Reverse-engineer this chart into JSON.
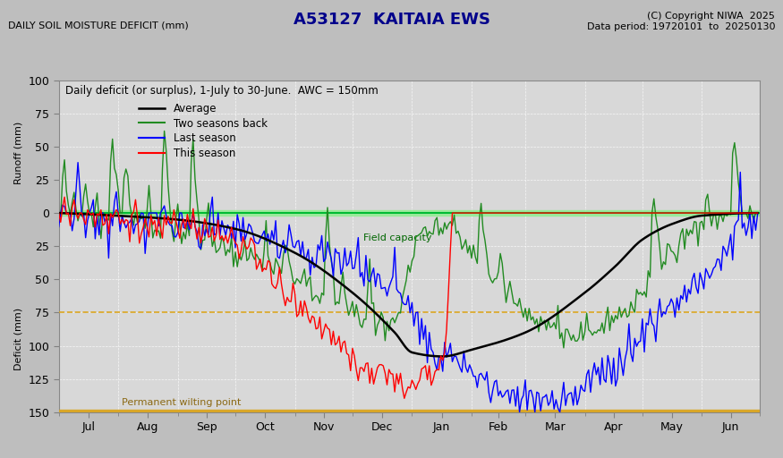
{
  "title": "A53127  KAITAIA EWS",
  "subtitle_left": "DAILY SOIL MOISTURE DEFICIT (mm)",
  "copyright": "(C) Copyright NIWA  2025",
  "data_period": "Data period: 19720101  to  20250130",
  "annotation": "Daily deficit (or surplus), 1-July to 30-June.  AWC = 150mm",
  "field_capacity_label": "Field capacity",
  "pwp_label": "Permanent wilting point",
  "legend_entries": [
    "Average",
    "Two seasons back",
    "Last season",
    "This season"
  ],
  "legend_colors": [
    "black",
    "#228B22",
    "blue",
    "red"
  ],
  "ylabel_top": "Runoff (mm)",
  "ylabel_bottom": "Deficit (mm)",
  "x_tick_labels": [
    "Jul",
    "Aug",
    "Sep",
    "Oct",
    "Nov",
    "Dec",
    "Jan",
    "Feb",
    "Mar",
    "Apr",
    "May",
    "Jun"
  ],
  "title_color": "#00008B",
  "plot_bg_color": "#d8d8d8",
  "fig_bg_color": "#c0c0c0",
  "green_color": "#228B22",
  "field_capacity_color": "#00cc44",
  "pwp_color": "#DAA520",
  "stress_color": "#DAA520"
}
